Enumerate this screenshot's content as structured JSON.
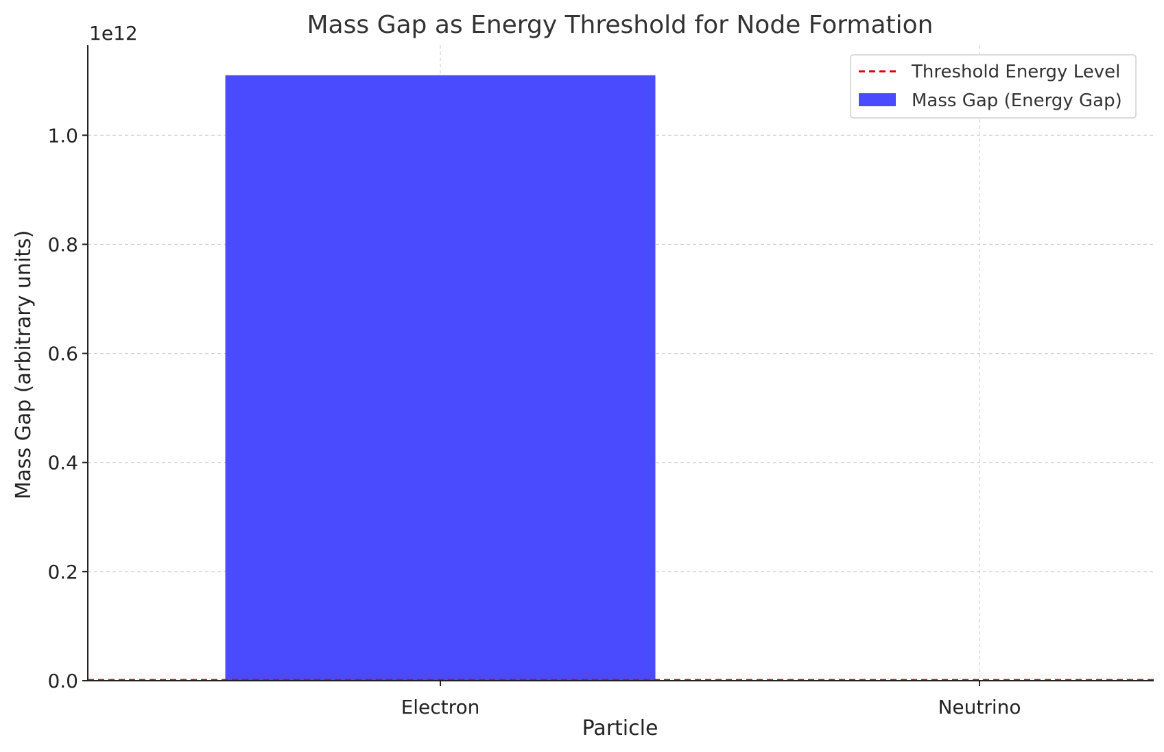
{
  "chart_data": {
    "type": "bar",
    "title": "Mass Gap as Energy Threshold for Node Formation",
    "xlabel": "Particle",
    "ylabel": "Mass Gap (arbitrary units)",
    "y_offset_label": "1e12",
    "categories": [
      "Electron",
      "Neutrino"
    ],
    "series": [
      {
        "name": "Mass Gap (Energy Gap)",
        "values": [
          1110000000000,
          0.0001
        ],
        "color": "#4a4aff"
      }
    ],
    "threshold": {
      "name": "Threshold Energy Level",
      "value": 0,
      "color": "#e00000"
    },
    "ylim": [
      0,
      1165000000000
    ],
    "yticks": [
      0,
      200000000000,
      400000000000,
      600000000000,
      800000000000,
      1000000000000
    ],
    "ytick_labels": [
      "0.0",
      "0.2",
      "0.4",
      "0.6",
      "0.8",
      "1.0"
    ],
    "grid": true,
    "legend_position": "top-right"
  }
}
